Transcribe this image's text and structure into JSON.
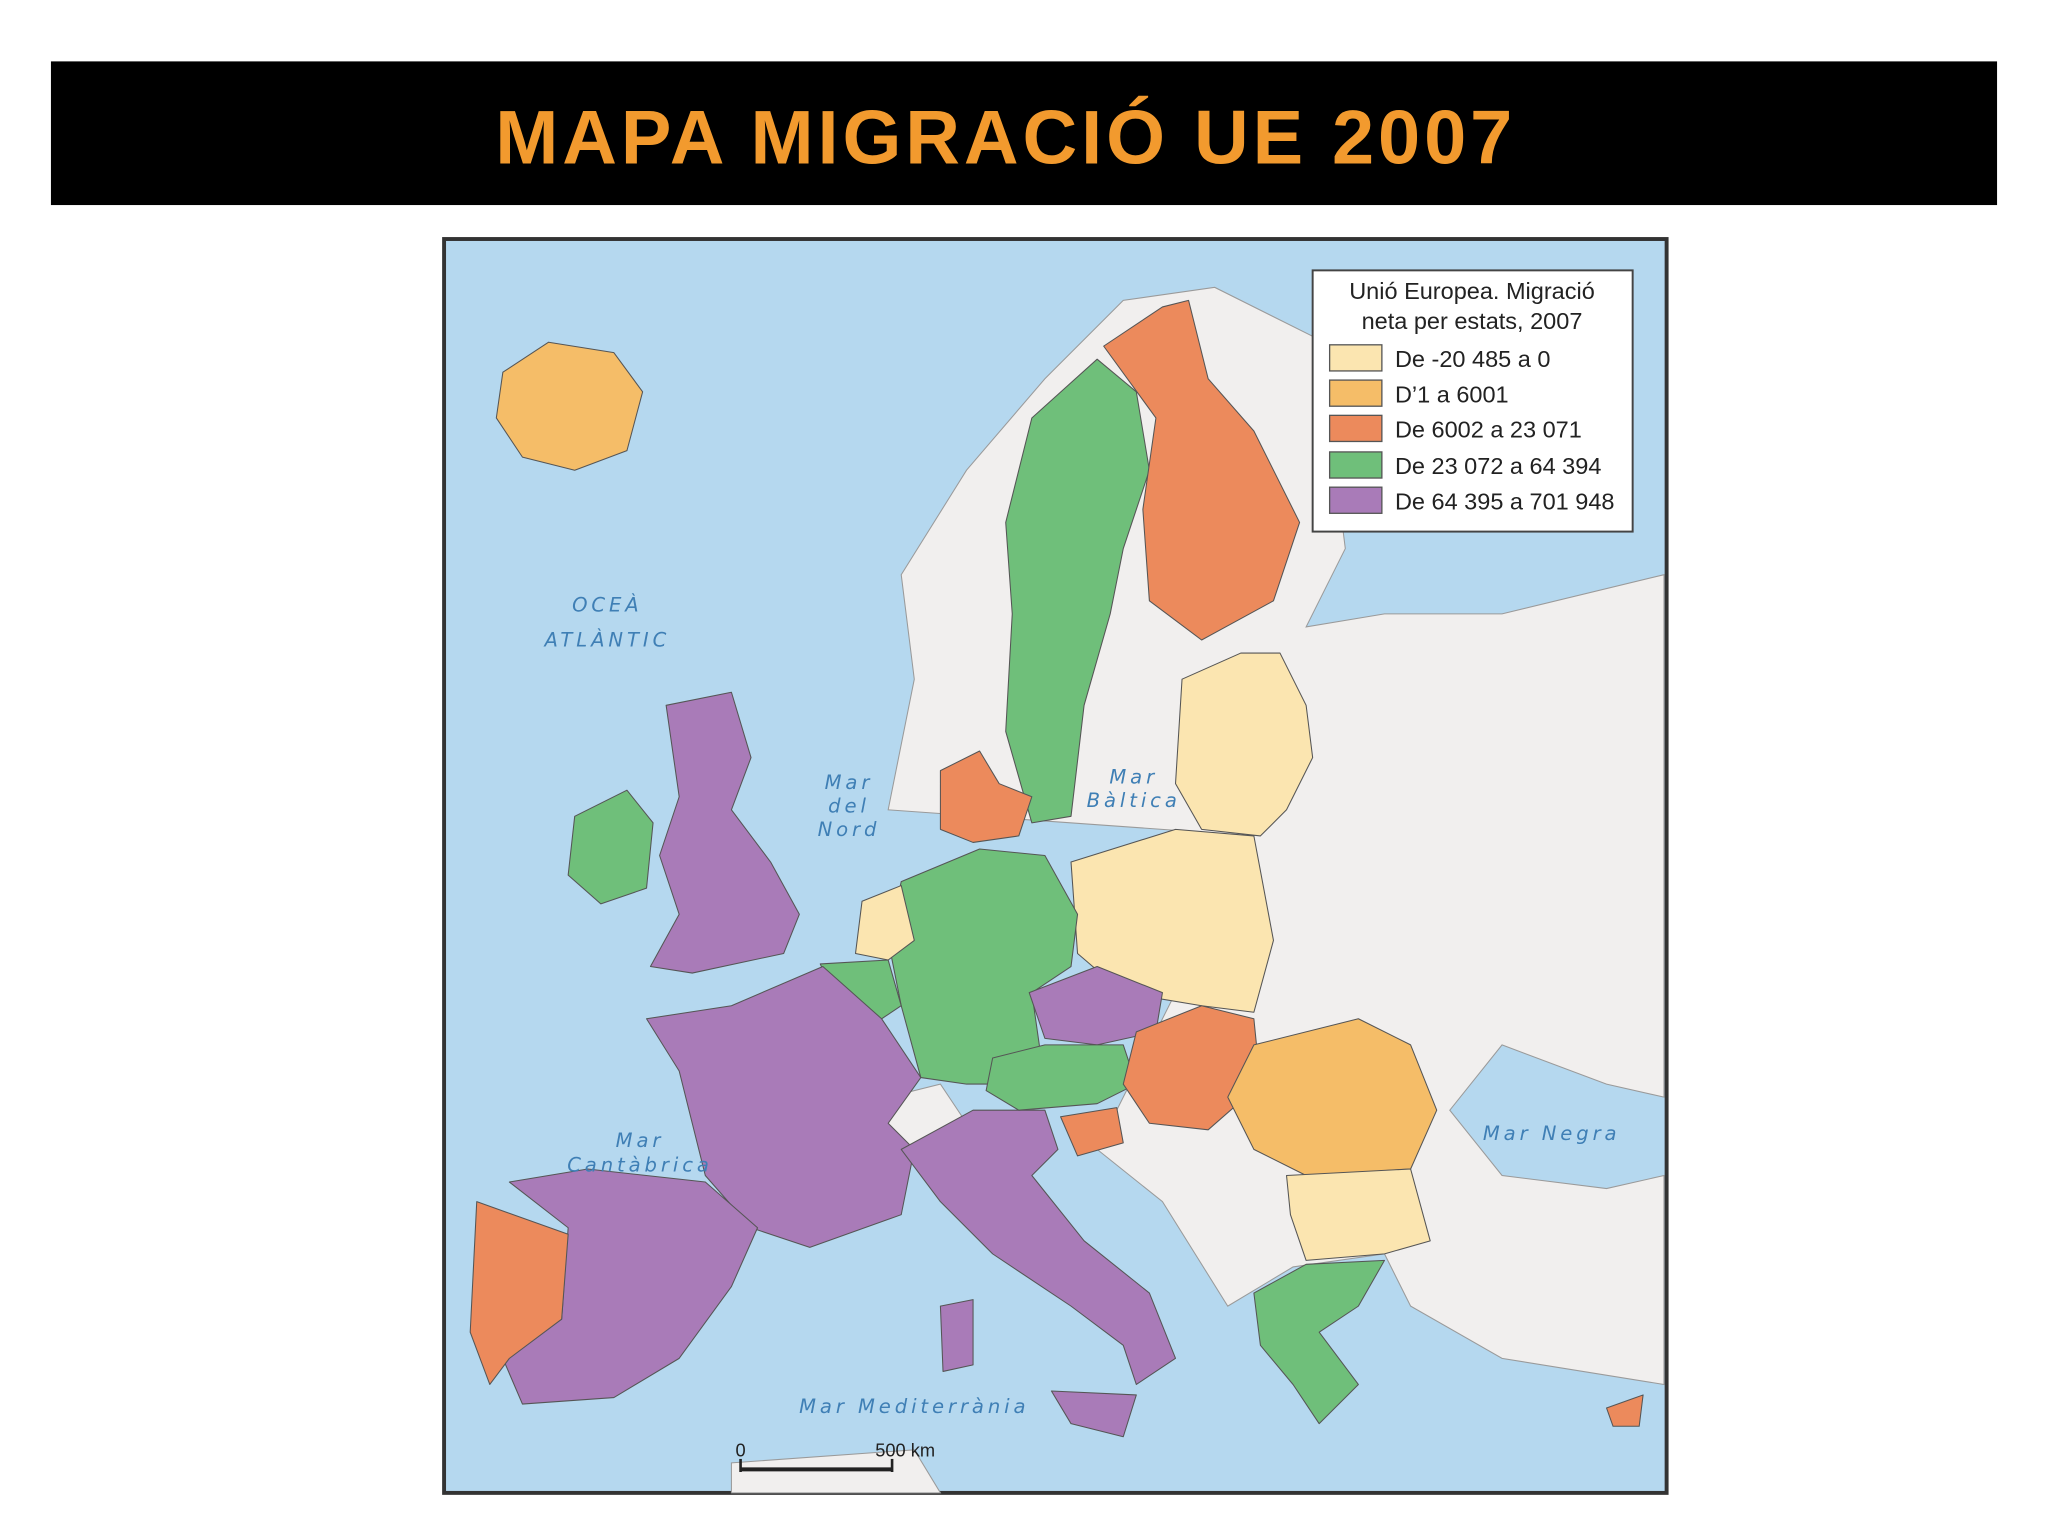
{
  "header": {
    "title": "MAPA MIGRACIÓ UE 2007"
  },
  "legend": {
    "title_lines": [
      "Unió Europea. Migració",
      "neta per estats, 2007"
    ],
    "items": [
      "De -20 485 a 0",
      "D’1 a 6001",
      "De 6002 a 23 071",
      "De 23 072 a 64 394",
      "De 64 395 a 701 948"
    ]
  },
  "sea_labels": {
    "atlantic": [
      "OCEÀ",
      "ATLÀNTIC"
    ],
    "north_sea": [
      "Mar",
      "del",
      "Nord"
    ],
    "baltic": [
      "Mar",
      "Bàltica"
    ],
    "cantabrian": [
      "Mar",
      "Cantàbrica"
    ],
    "black_sea": "Mar Negra",
    "mediterranean": "Mar Mediterrània"
  },
  "scale": {
    "start": "0",
    "end": "500 km"
  }
}
